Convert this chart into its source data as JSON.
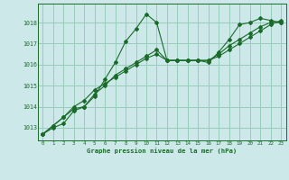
{
  "title": "Graphe pression niveau de la mer (hPa)",
  "background_color": "#cce8e8",
  "grid_color": "#99ccbb",
  "line_color": "#1a6b2a",
  "x_ticks": [
    0,
    1,
    2,
    3,
    4,
    5,
    6,
    7,
    8,
    9,
    10,
    11,
    12,
    13,
    14,
    15,
    16,
    17,
    18,
    19,
    20,
    21,
    22,
    23
  ],
  "ylim": [
    1012.4,
    1018.9
  ],
  "y_ticks": [
    1013,
    1014,
    1015,
    1016,
    1017,
    1018
  ],
  "series1": [
    1012.7,
    1013.0,
    1013.2,
    1013.8,
    1014.0,
    1014.5,
    1015.3,
    1016.1,
    1017.1,
    1017.7,
    1018.4,
    1018.0,
    1016.2,
    1016.2,
    1016.2,
    1016.2,
    1016.1,
    1016.6,
    1017.2,
    1017.9,
    1018.0,
    1018.2,
    1018.1,
    1018.0
  ],
  "series2": [
    1012.7,
    1013.1,
    1013.5,
    1013.9,
    1014.0,
    1014.6,
    1015.0,
    1015.5,
    1015.8,
    1016.1,
    1016.4,
    1016.7,
    1016.2,
    1016.2,
    1016.2,
    1016.2,
    1016.2,
    1016.5,
    1016.9,
    1017.2,
    1017.5,
    1017.8,
    1018.0,
    1018.0
  ],
  "series3": [
    1012.7,
    1013.1,
    1013.5,
    1014.0,
    1014.3,
    1014.8,
    1015.1,
    1015.4,
    1015.7,
    1016.0,
    1016.3,
    1016.5,
    1016.2,
    1016.2,
    1016.2,
    1016.2,
    1016.2,
    1016.4,
    1016.7,
    1017.0,
    1017.3,
    1017.6,
    1017.9,
    1018.1
  ]
}
